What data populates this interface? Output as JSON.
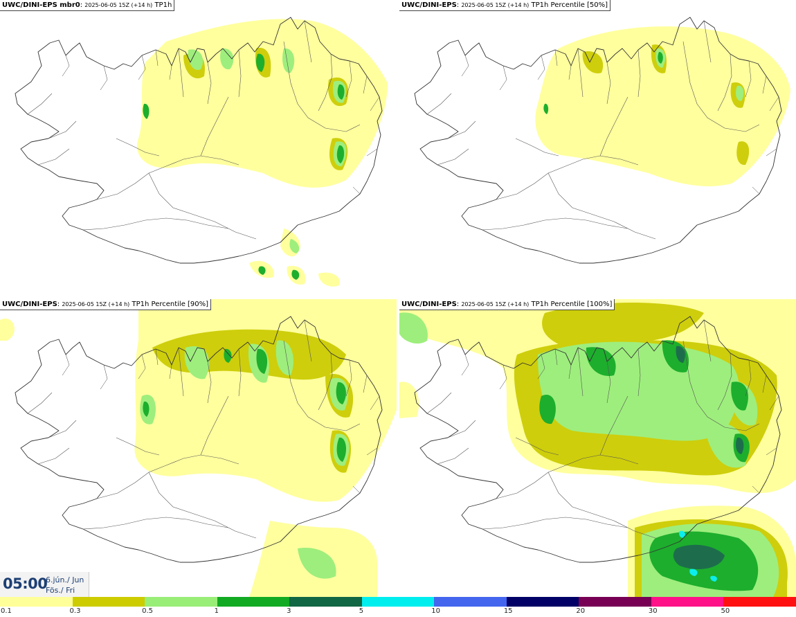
{
  "panels": [
    {
      "model": "UWC/DINI-EPS mbr0",
      "run": "2025-06-05 15Z (+14 h)",
      "field": "TP1h"
    },
    {
      "model": "UWC/DINI-EPS",
      "run": "2025-06-05 15Z (+14 h)",
      "field": "TP1h Percentile [50%]"
    },
    {
      "model": "UWC/DINI-EPS",
      "run": "2025-06-05 15Z (+14 h)",
      "field": "TP1h Percentile [90%]"
    },
    {
      "model": "UWC/DINI-EPS",
      "run": "2025-06-05 15Z (+14 h)",
      "field": "TP1h Percentile [100%]"
    }
  ],
  "valid_time": {
    "clock": "05:00",
    "date_is": "6.jún./ Jun",
    "weekday": "Fös./ Fri"
  },
  "legend": {
    "labels": [
      "0.1",
      "0.3",
      "0.5",
      "1",
      "3",
      "5",
      "10",
      "15",
      "20",
      "30",
      "50"
    ],
    "colors": [
      "#ffff99",
      "#cccc00",
      "#99ee77",
      "#11aa22",
      "#116644",
      "#00eeee",
      "#4466ee",
      "#000066",
      "#770055",
      "#ff1188",
      "#ff1111"
    ]
  }
}
